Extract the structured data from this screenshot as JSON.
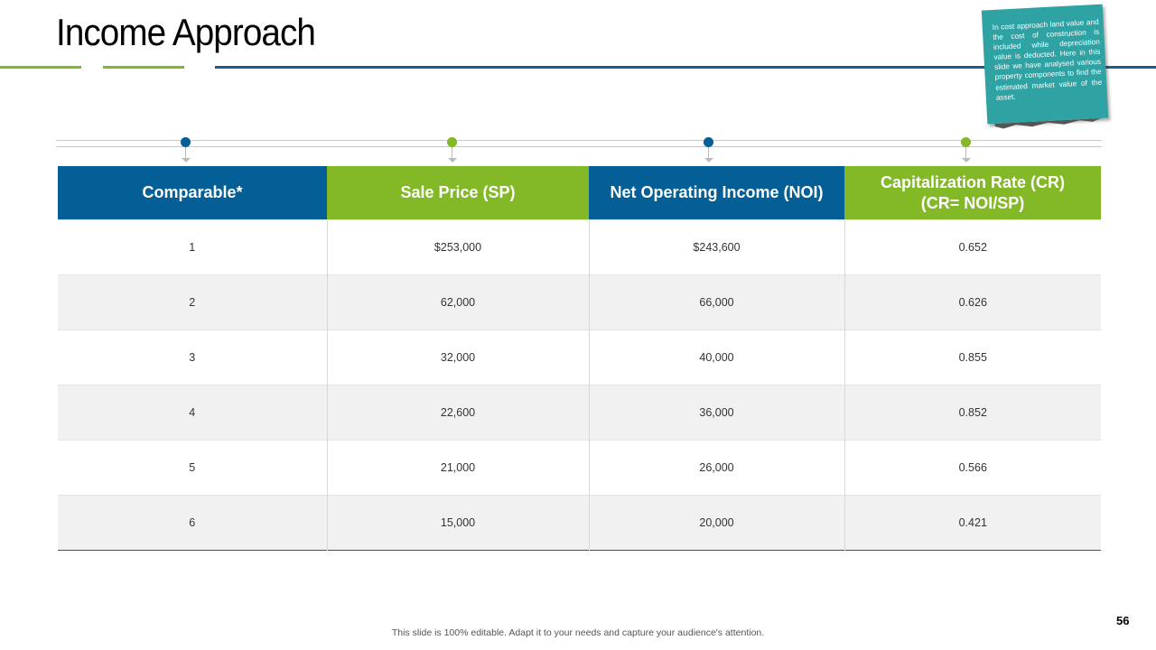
{
  "title": "Income Approach",
  "note": "In cost approach land value and the cost of construction is included while depreciation value is deducted. Here in this slide we have analysed various property components to find the estimated market value of the asset.",
  "colors": {
    "blue": "#045f96",
    "green": "#83b827",
    "teal": "#2fa2a4"
  },
  "table": {
    "headers": [
      {
        "lines": [
          "Comparable*"
        ],
        "color": "#045f96"
      },
      {
        "lines": [
          "Sale Price (SP)"
        ],
        "color": "#83b827"
      },
      {
        "lines": [
          "Net Operating Income (NOI)"
        ],
        "color": "#045f96"
      },
      {
        "lines": [
          "Capitalization Rate (CR)",
          "(CR= NOI/SP)"
        ],
        "color": "#83b827"
      }
    ],
    "rows": [
      [
        "1",
        "$253,000",
        "$243,600",
        "0.652"
      ],
      [
        "2",
        "62,000",
        "66,000",
        "0.626"
      ],
      [
        "3",
        "32,000",
        "40,000",
        "0.855"
      ],
      [
        "4",
        "22,600",
        "36,000",
        "0.852"
      ],
      [
        "5",
        "21,000",
        "26,000",
        "0.566"
      ],
      [
        "6",
        "15,000",
        "20,000",
        "0.421"
      ]
    ]
  },
  "footer": "This slide is 100% editable. Adapt it to your needs and capture your audience's attention.",
  "page_number": "56"
}
